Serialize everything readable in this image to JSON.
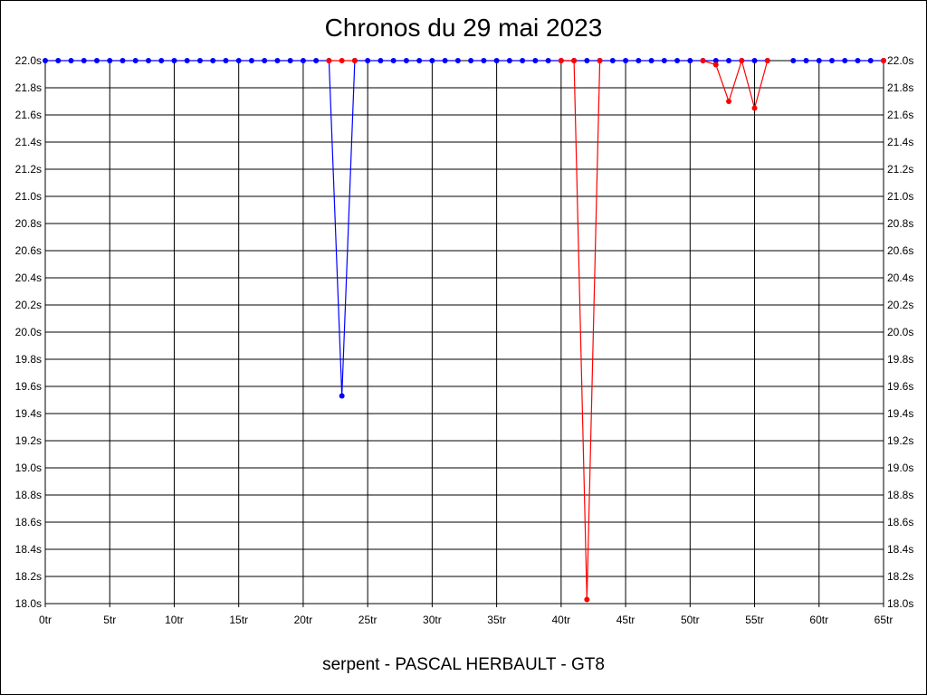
{
  "chart_data": {
    "type": "line",
    "title": "Chronos du 29 mai 2023",
    "subtitle": "serpent - PASCAL HERBAULT - GT8",
    "xlim": [
      0,
      65
    ],
    "ylim": [
      18.0,
      22.0
    ],
    "x_ticks": [
      0,
      5,
      10,
      15,
      20,
      25,
      30,
      35,
      40,
      45,
      50,
      55,
      60,
      65
    ],
    "x_tick_labels": [
      "0tr",
      "5tr",
      "10tr",
      "15tr",
      "20tr",
      "25tr",
      "30tr",
      "35tr",
      "40tr",
      "45tr",
      "50tr",
      "55tr",
      "60tr",
      "65tr"
    ],
    "y_ticks": [
      18.0,
      18.2,
      18.4,
      18.6,
      18.8,
      19.0,
      19.2,
      19.4,
      19.6,
      19.8,
      20.0,
      20.2,
      20.4,
      20.6,
      20.8,
      21.0,
      21.2,
      21.4,
      21.6,
      21.8,
      22.0
    ],
    "y_tick_labels": [
      "18.0s",
      "18.2s",
      "18.4s",
      "18.6s",
      "18.8s",
      "19.0s",
      "19.2s",
      "19.4s",
      "19.6s",
      "19.8s",
      "20.0s",
      "20.2s",
      "20.4s",
      "20.6s",
      "20.8s",
      "21.0s",
      "21.2s",
      "21.4s",
      "21.6s",
      "21.8s",
      "22.0s"
    ],
    "grid": true,
    "series": [
      {
        "color": "#0000ff",
        "segments": [
          {
            "x": [
              0,
              1,
              2,
              3,
              4,
              5,
              6,
              7,
              8,
              9,
              10,
              11,
              12,
              13,
              14,
              15,
              16,
              17,
              18,
              19,
              20,
              21,
              22,
              23,
              24,
              25,
              26,
              27,
              28,
              29,
              30,
              31,
              32
            ],
            "y": [
              22.0,
              22.0,
              22.0,
              22.0,
              22.0,
              22.0,
              22.0,
              22.0,
              22.0,
              22.0,
              22.0,
              22.0,
              22.0,
              22.0,
              22.0,
              22.0,
              22.0,
              22.0,
              22.0,
              22.0,
              22.0,
              22.0,
              22.0,
              19.53,
              22.0,
              22.0,
              22.0,
              22.0,
              22.0,
              22.0,
              22.0,
              22.0,
              22.0
            ]
          },
          {
            "x": [
              33,
              34,
              35,
              36,
              37,
              38,
              39,
              40,
              41,
              42,
              43,
              44,
              45,
              46,
              47,
              48,
              49,
              50,
              51,
              52,
              53,
              54,
              55,
              56
            ],
            "y": [
              22.0,
              22.0,
              22.0,
              22.0,
              22.0,
              22.0,
              22.0,
              22.0,
              22.0,
              22.0,
              22.0,
              22.0,
              22.0,
              22.0,
              22.0,
              22.0,
              22.0,
              22.0,
              22.0,
              22.0,
              22.0,
              22.0,
              22.0,
              22.0
            ]
          },
          {
            "x": [
              58,
              59,
              60,
              61,
              62,
              63,
              64,
              65
            ],
            "y": [
              22.0,
              22.0,
              22.0,
              22.0,
              22.0,
              22.0,
              22.0,
              22.0
            ]
          }
        ]
      },
      {
        "color": "#ff0000",
        "segments": [
          {
            "x": [
              22,
              23,
              24
            ],
            "y": [
              22.0,
              22.0,
              22.0
            ]
          },
          {
            "x": [
              40,
              41,
              42,
              43
            ],
            "y": [
              22.0,
              22.0,
              18.03,
              22.0
            ]
          },
          {
            "x": [
              51,
              52,
              53,
              54,
              55,
              56
            ],
            "y": [
              22.0,
              21.97,
              21.7,
              22.0,
              21.65,
              22.0
            ]
          },
          {
            "x": [
              65
            ],
            "y": [
              22.0
            ]
          }
        ]
      }
    ]
  }
}
